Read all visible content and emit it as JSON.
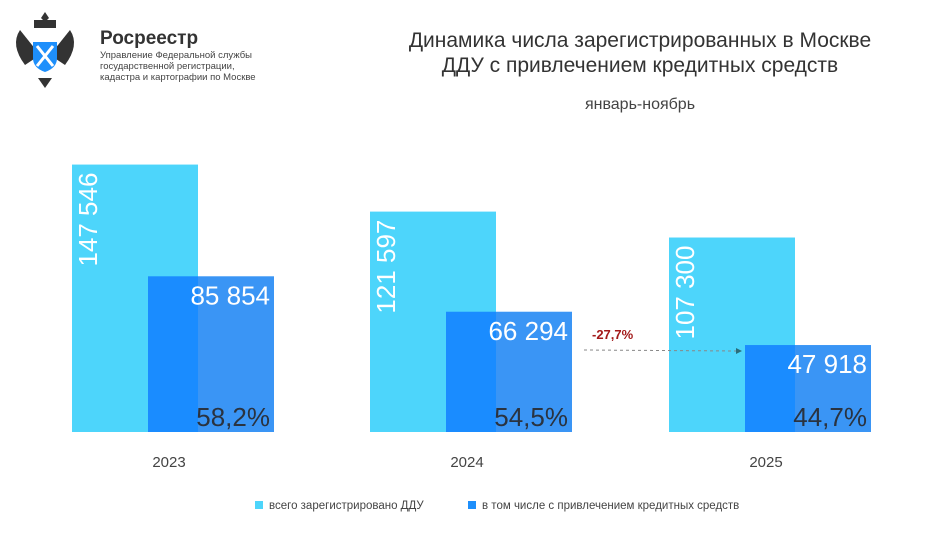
{
  "header": {
    "brand": "Росреестр",
    "subtitle_lines": [
      "Управление Федеральной службы",
      "государственной регистрации,",
      "кадастра и картографии по Москве"
    ]
  },
  "chart_data": {
    "type": "bar",
    "title": "Динамика числа зарегистрированных в Москве ДДУ с привлечением кредитных средств",
    "title_lines": [
      "Динамика числа зарегистрированных в Москве",
      "ДДУ с привлечением кредитных средств"
    ],
    "subtitle": "январь-ноябрь",
    "categories": [
      "2023",
      "2024",
      "2025"
    ],
    "series": [
      {
        "name": "всего зарегистрировано ДДУ",
        "values": [
          147546,
          121597,
          107300
        ],
        "labels": [
          "147 546",
          "121 597",
          "107 300"
        ],
        "color": "#4dd5fb"
      },
      {
        "name": "в том числе с привлечением кредитных средств",
        "values": [
          85854,
          66294,
          47918
        ],
        "labels": [
          "85 854",
          "66 294",
          "47 918"
        ],
        "shares": [
          "58,2%",
          "54,5%",
          "44,7%"
        ],
        "color": "#1e8ffb"
      }
    ],
    "annotation": {
      "text": "-27,7%",
      "color": "#a31a1a"
    },
    "ylim": [
      0,
      160000
    ],
    "grid": false,
    "legend": "bottom"
  }
}
